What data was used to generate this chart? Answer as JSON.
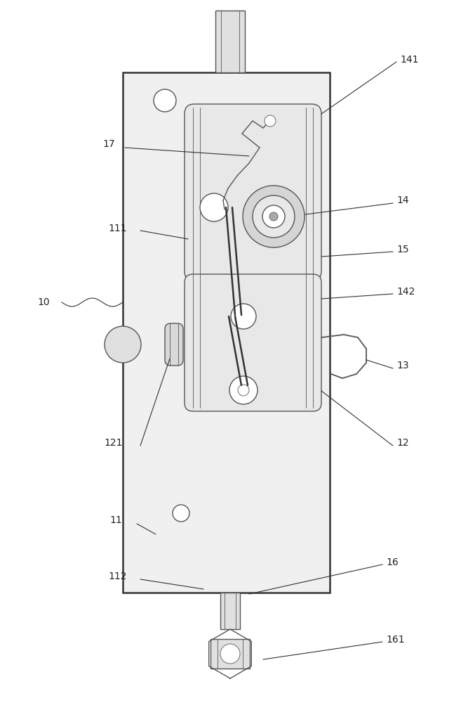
{
  "bg_color": "#ffffff",
  "line_color": "#555555",
  "line_color2": "#333333",
  "lw": 1.0,
  "lw_thick": 1.8,
  "lw_thin": 0.6,
  "plate_fc": "#f0f0f0",
  "block_fc": "#e8e8e8",
  "shaft_fc": "#e0e0e0",
  "annot_fs": 10,
  "annot_color": "#222222"
}
